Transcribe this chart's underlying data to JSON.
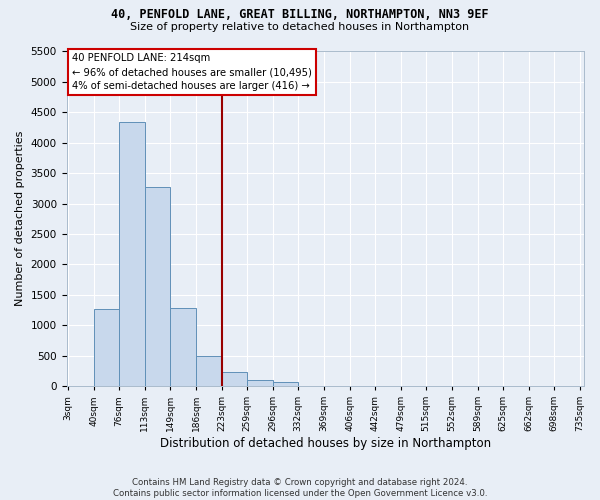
{
  "title1": "40, PENFOLD LANE, GREAT BILLING, NORTHAMPTON, NN3 9EF",
  "title2": "Size of property relative to detached houses in Northampton",
  "xlabel": "Distribution of detached houses by size in Northampton",
  "ylabel": "Number of detached properties",
  "footnote": "Contains HM Land Registry data © Crown copyright and database right 2024.\nContains public sector information licensed under the Open Government Licence v3.0.",
  "bin_edges": [
    3,
    40,
    76,
    113,
    149,
    186,
    223,
    259,
    296,
    332,
    369,
    406,
    442,
    479,
    515,
    552,
    589,
    625,
    662,
    698,
    735
  ],
  "bin_labels": [
    "3sqm",
    "40sqm",
    "76sqm",
    "113sqm",
    "149sqm",
    "186sqm",
    "223sqm",
    "259sqm",
    "296sqm",
    "332sqm",
    "369sqm",
    "406sqm",
    "442sqm",
    "479sqm",
    "515sqm",
    "552sqm",
    "589sqm",
    "625sqm",
    "662sqm",
    "698sqm",
    "735sqm"
  ],
  "bar_heights": [
    0,
    1270,
    4340,
    3270,
    1280,
    490,
    225,
    100,
    60,
    0,
    0,
    0,
    0,
    0,
    0,
    0,
    0,
    0,
    0,
    0
  ],
  "bar_color": "#c8d8ec",
  "bar_edge_color": "#6090b8",
  "vline_pos": 223,
  "vline_color": "#990000",
  "ylim": [
    0,
    5500
  ],
  "yticks": [
    0,
    500,
    1000,
    1500,
    2000,
    2500,
    3000,
    3500,
    4000,
    4500,
    5000,
    5500
  ],
  "annotation_text": "40 PENFOLD LANE: 214sqm\n← 96% of detached houses are smaller (10,495)\n4% of semi-detached houses are larger (416) →",
  "annotation_box_color": "#ffffff",
  "annotation_box_edge": "#cc0000",
  "bg_color": "#e8eef6"
}
